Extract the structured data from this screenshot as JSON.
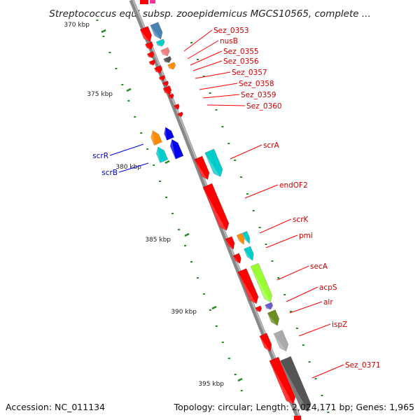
{
  "title": "Streptococcus equi subsp. zooepidemicus MGCS10565, complete ...",
  "footer": {
    "accession": "Accession: NC_011134",
    "topology": "Topology: circular; Length: 2,024,171 bp; Genes: 1,965"
  },
  "colors": {
    "red": "#ff0000",
    "cyan": "#00cccc",
    "orange": "#ff8c00",
    "blue": "#0000ee",
    "lime": "#99ff33",
    "olive": "#6b8e23",
    "steel": "#4682b4",
    "salmon": "#f08080",
    "purple": "#6a5acd",
    "gray": "#aaaaaa",
    "darkgray": "#555555",
    "tick": "#228b22"
  },
  "ticks": [
    "370 kbp",
    "375 kbp",
    "380 kbp",
    "385 kbp",
    "390 kbp",
    "395 kbp"
  ],
  "labels_forward": [
    "Sez_0353",
    "nusB",
    "Sez_0355",
    "Sez_0356",
    "Sez_0357",
    "Sez_0358",
    "Sez_0359",
    "Sez_0360",
    "scrA",
    "endOF2",
    "scrK",
    "pmi",
    "secA",
    "acpS",
    "alr",
    "ispZ",
    "Sez_0371"
  ],
  "labels_reverse": [
    "scrR",
    "scrB"
  ]
}
